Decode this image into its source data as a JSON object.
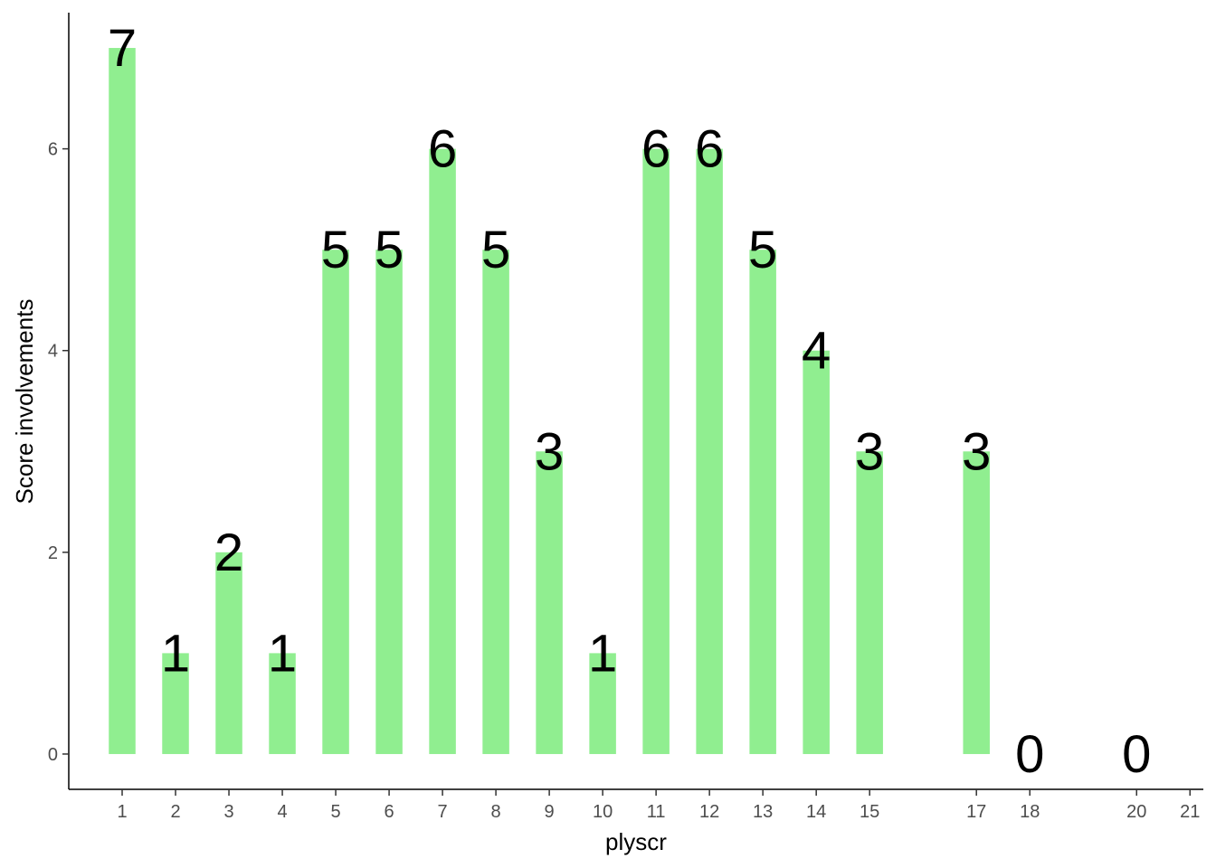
{
  "colors": {
    "bar": "#90EE90",
    "axis": "#000000",
    "tick_text": "#4d4d4d"
  },
  "chart_data": {
    "type": "bar",
    "xlabel": "plyscr",
    "ylabel": "Score involvements",
    "x": [
      1,
      2,
      3,
      4,
      5,
      6,
      7,
      8,
      9,
      10,
      11,
      12,
      13,
      14,
      15,
      17,
      18,
      20
    ],
    "values": [
      7,
      1,
      2,
      1,
      5,
      5,
      6,
      5,
      3,
      1,
      6,
      6,
      5,
      4,
      3,
      3,
      0,
      0
    ],
    "x_ticks": [
      1,
      2,
      3,
      4,
      5,
      6,
      7,
      8,
      9,
      10,
      11,
      12,
      13,
      14,
      15,
      17,
      18,
      20,
      21
    ],
    "y_ticks": [
      0,
      2,
      4,
      6
    ],
    "xlim": [
      0,
      21.25
    ],
    "ylim": [
      -0.35,
      7.35
    ],
    "grid": false,
    "legend": "none"
  }
}
